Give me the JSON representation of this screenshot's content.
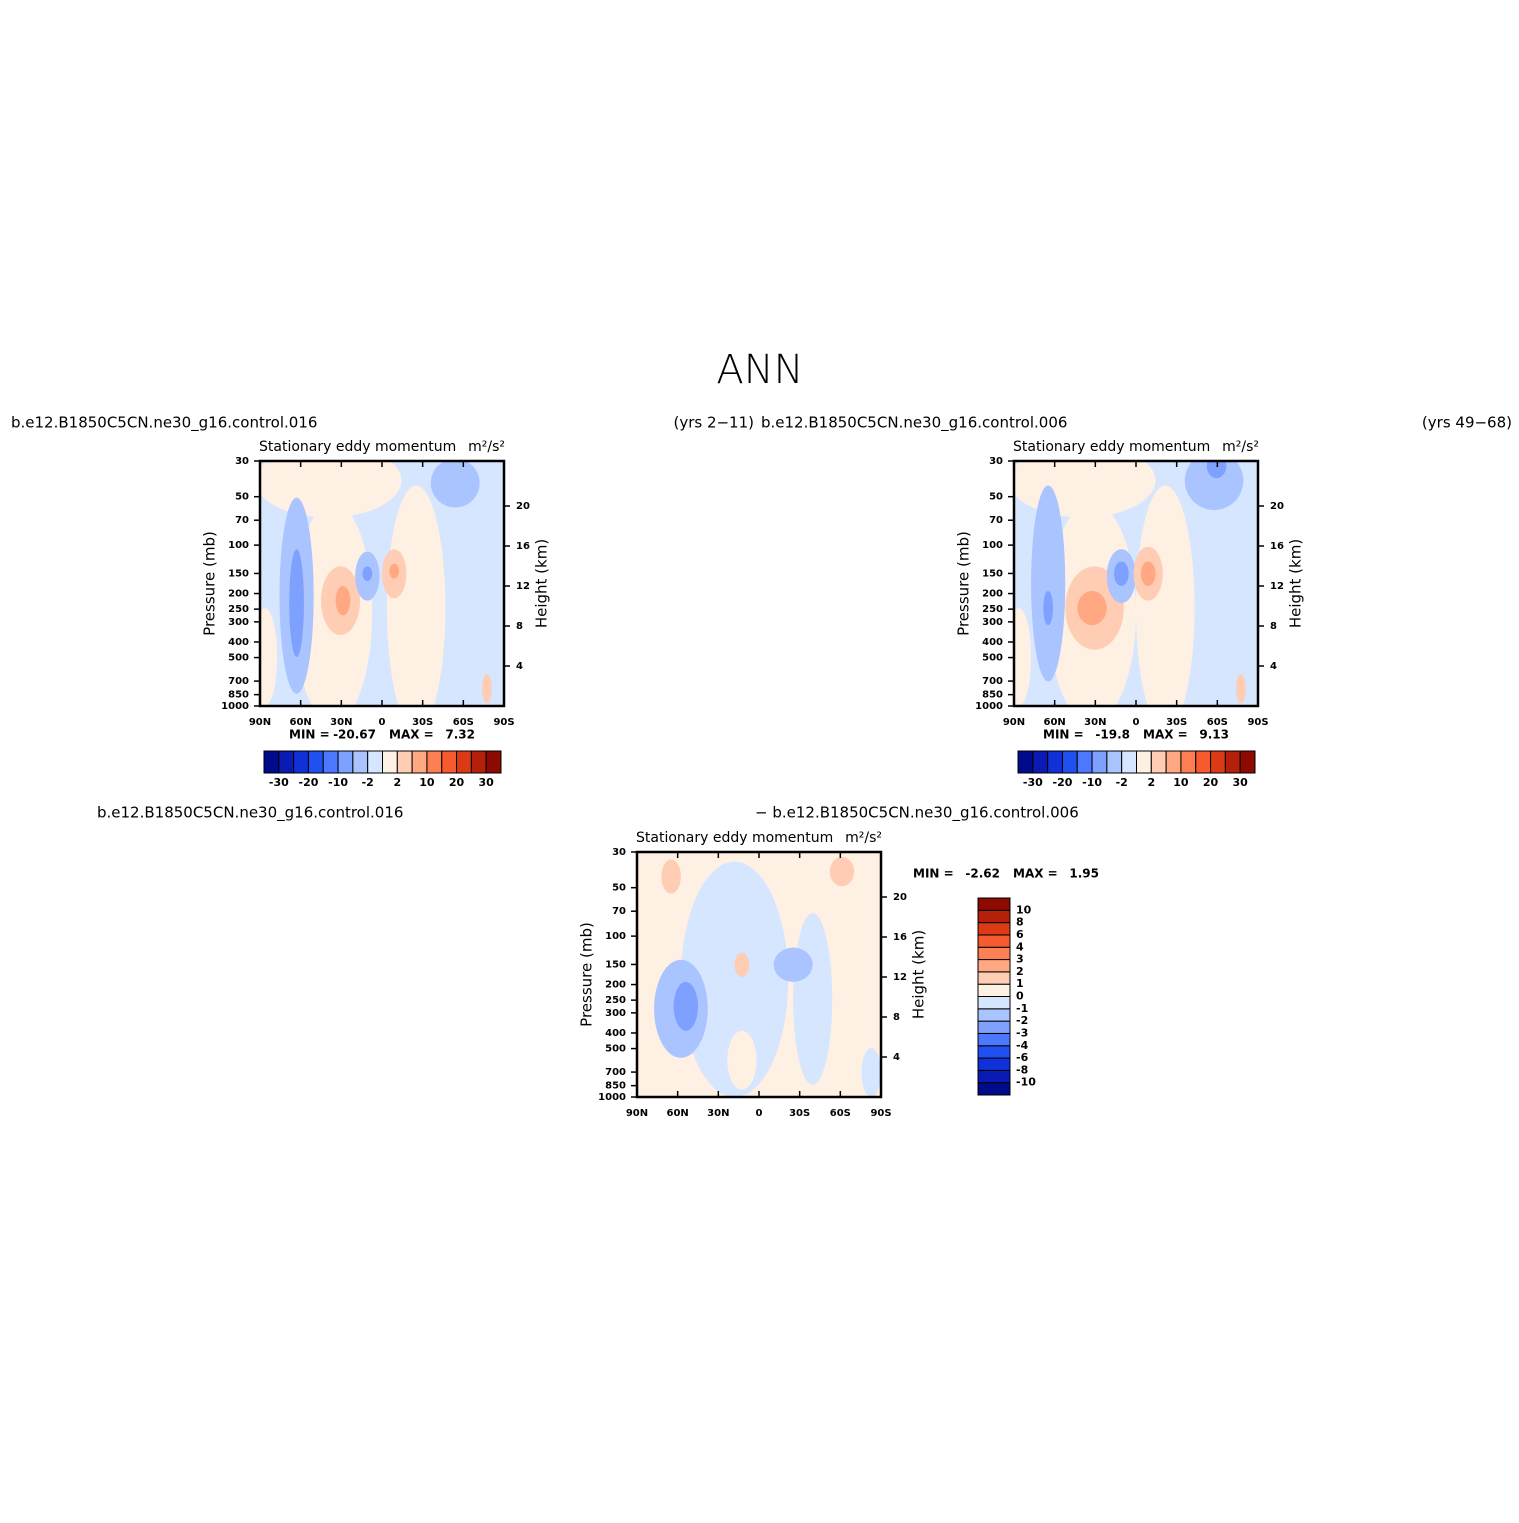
{
  "title": "ANN",
  "chart_data": [
    {
      "type": "contour",
      "left_string": "b.e12.B1850C5CN.ne30_g16.control.016",
      "right_string": "(yrs 2−11)",
      "title": "Stationary eddy momentum",
      "units": "m²/s²",
      "ylabel": "Pressure (mb)",
      "y2label": "Height (km)",
      "xlim": [
        90,
        -90
      ],
      "xticks": [
        {
          "value": 90,
          "label": "90N"
        },
        {
          "value": 60,
          "label": "60N"
        },
        {
          "value": 30,
          "label": "30N"
        },
        0,
        {
          "value": -30,
          "label": "30S"
        },
        {
          "value": -60,
          "label": "60S"
        },
        {
          "value": -90,
          "label": "90S"
        }
      ],
      "ylim": [
        1000,
        30
      ],
      "log_y": true,
      "yticks": [
        1000,
        850,
        700,
        500,
        400,
        300,
        250,
        200,
        150,
        100,
        70,
        50,
        30
      ],
      "y2lim": [
        0,
        24.5
      ],
      "y2ticks": [
        4,
        8,
        12,
        16,
        20
      ],
      "min_label": "MIN =",
      "min": -20.67,
      "max_label": "MAX =",
      "max": 7.32,
      "colorbar": {
        "orientation": "horizontal",
        "levels": [
          -30,
          null,
          -20,
          null,
          -10,
          null,
          -2,
          null,
          2,
          null,
          10,
          null,
          20,
          null,
          30
        ],
        "colors": [
          "#000b8c",
          "#0a1ab4",
          "#1030d8",
          "#2050f0",
          "#4c78ff",
          "#7ea0ff",
          "#aac4ff",
          "#d6e6ff",
          "#fff0e4",
          "#ffcdb4",
          "#ffa882",
          "#ff7f55",
          "#f75a2d",
          "#dc3a14",
          "#b4200a",
          "#8c0a00"
        ]
      }
    },
    {
      "type": "contour",
      "left_string": "b.e12.B1850C5CN.ne30_g16.control.006",
      "right_string": "(yrs 49−68)",
      "title": "Stationary eddy momentum",
      "units": "m²/s²",
      "ylabel": "Pressure (mb)",
      "y2label": "Height (km)",
      "xlim": [
        90,
        -90
      ],
      "xticks": [
        {
          "value": 90,
          "label": "90N"
        },
        {
          "value": 60,
          "label": "60N"
        },
        {
          "value": 30,
          "label": "30N"
        },
        0,
        {
          "value": -30,
          "label": "30S"
        },
        {
          "value": -60,
          "label": "60S"
        },
        {
          "value": -90,
          "label": "90S"
        }
      ],
      "ylim": [
        1000,
        30
      ],
      "log_y": true,
      "yticks": [
        1000,
        850,
        700,
        500,
        400,
        300,
        250,
        200,
        150,
        100,
        70,
        50,
        30
      ],
      "y2lim": [
        0,
        24.5
      ],
      "y2ticks": [
        4,
        8,
        12,
        16,
        20
      ],
      "min_label": "MIN =",
      "min": -19.8,
      "max_label": "MAX =",
      "max": 9.13,
      "colorbar": {
        "orientation": "horizontal",
        "levels": [
          -30,
          null,
          -20,
          null,
          -10,
          null,
          -2,
          null,
          2,
          null,
          10,
          null,
          20,
          null,
          30
        ],
        "colors": [
          "#000b8c",
          "#0a1ab4",
          "#1030d8",
          "#2050f0",
          "#4c78ff",
          "#7ea0ff",
          "#aac4ff",
          "#d6e6ff",
          "#fff0e4",
          "#ffcdb4",
          "#ffa882",
          "#ff7f55",
          "#f75a2d",
          "#dc3a14",
          "#b4200a",
          "#8c0a00"
        ]
      }
    },
    {
      "type": "contour",
      "left_string": "b.e12.B1850C5CN.ne30_g16.control.016",
      "right_string": "− b.e12.B1850C5CN.ne30_g16.control.006",
      "title": "Stationary eddy momentum",
      "units": "m²/s²",
      "ylabel": "Pressure (mb)",
      "y2label": "Height (km)",
      "xlim": [
        90,
        -90
      ],
      "xticks": [
        {
          "value": 90,
          "label": "90N"
        },
        {
          "value": 60,
          "label": "60N"
        },
        {
          "value": 30,
          "label": "30N"
        },
        0,
        {
          "value": -30,
          "label": "30S"
        },
        {
          "value": -60,
          "label": "60S"
        },
        {
          "value": -90,
          "label": "90S"
        }
      ],
      "ylim": [
        1000,
        30
      ],
      "log_y": true,
      "yticks": [
        1000,
        850,
        700,
        500,
        400,
        300,
        250,
        200,
        150,
        100,
        70,
        50,
        30
      ],
      "y2lim": [
        0,
        24.5
      ],
      "y2ticks": [
        4,
        8,
        12,
        16,
        20
      ],
      "min_label": "MIN =",
      "min": -2.62,
      "max_label": "MAX =",
      "max": 1.95,
      "colorbar": {
        "orientation": "vertical",
        "levels": [
          -10,
          -8,
          -6,
          -4,
          -3,
          -2,
          -1,
          0,
          1,
          2,
          3,
          4,
          6,
          8,
          10
        ],
        "colors": [
          "#000b8c",
          "#0a1ab4",
          "#1030d8",
          "#2050f0",
          "#4c78ff",
          "#7ea0ff",
          "#aac4ff",
          "#d6e6ff",
          "#fff0e4",
          "#ffcdb4",
          "#ffa882",
          "#ff7f55",
          "#f75a2d",
          "#dc3a14",
          "#b4200a",
          "#8c0a00"
        ]
      }
    }
  ]
}
